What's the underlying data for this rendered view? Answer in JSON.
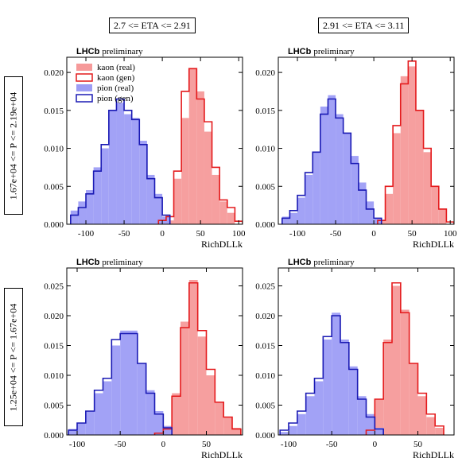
{
  "col_labels": [
    "2.7 <= ETA <= 2.91",
    "2.91 <= ETA <= 3.11"
  ],
  "row_labels": [
    "1.67e+04 <= P <= 2.19e+04",
    "1.25e+04 <= P <= 1.67e+04"
  ],
  "colors": {
    "kaon_fill": "#f69a9a",
    "kaon_line": "#e41a1c",
    "pion_fill": "#9d9df5",
    "pion_line": "#1a1ab4"
  },
  "chart_data": [
    {
      "type": "histogram",
      "brand": "LHCb",
      "brand_sub": "preliminary",
      "xlabel": "RichDLLk",
      "xlim": [
        -125,
        105
      ],
      "ylim": [
        0,
        0.022
      ],
      "xticks": [
        -100,
        -50,
        0,
        50,
        100
      ],
      "yticks": [
        0.0,
        0.005,
        0.01,
        0.015,
        0.02
      ],
      "ytick_labels": [
        "0.000",
        "0.005",
        "0.010",
        "0.015",
        "0.020"
      ],
      "legend": [
        "kaon (real)",
        "kaon (gen)",
        "pion (real)",
        "pion (gen)"
      ],
      "legend_position": "top-left",
      "series": [
        {
          "name": "kaon (real)",
          "style": "fill",
          "edges": [
            -5,
            5,
            15,
            25,
            35,
            45,
            55,
            65,
            75,
            85,
            95
          ],
          "values": [
            0.0003,
            0.0005,
            0.006,
            0.014,
            0.0205,
            0.0175,
            0.0122,
            0.0065,
            0.003,
            0.0015
          ]
        },
        {
          "name": "kaon (gen)",
          "style": "step",
          "edges": [
            -5,
            5,
            15,
            25,
            35,
            45,
            55,
            65,
            75,
            85,
            95,
            105
          ],
          "values": [
            0.0005,
            0.001,
            0.007,
            0.0175,
            0.0205,
            0.0165,
            0.0135,
            0.0075,
            0.0032,
            0.0022,
            0.0004
          ]
        },
        {
          "name": "pion (real)",
          "style": "fill",
          "edges": [
            -120,
            -110,
            -100,
            -90,
            -80,
            -70,
            -60,
            -50,
            -40,
            -30,
            -20,
            -10,
            0,
            10
          ],
          "values": [
            0.0018,
            0.003,
            0.0045,
            0.0075,
            0.01,
            0.015,
            0.016,
            0.0145,
            0.014,
            0.011,
            0.0065,
            0.004,
            0.001
          ]
        },
        {
          "name": "pion (gen)",
          "style": "step",
          "edges": [
            -120,
            -110,
            -100,
            -90,
            -80,
            -70,
            -60,
            -50,
            -40,
            -30,
            -20,
            -10,
            0,
            10
          ],
          "values": [
            0.0012,
            0.0022,
            0.004,
            0.007,
            0.0105,
            0.015,
            0.0165,
            0.015,
            0.0138,
            0.0105,
            0.006,
            0.0035,
            0.0012
          ]
        }
      ]
    },
    {
      "type": "histogram",
      "brand": "LHCb",
      "brand_sub": "preliminary",
      "xlabel": "RichDLLk",
      "xlim": [
        -125,
        105
      ],
      "ylim": [
        0,
        0.022
      ],
      "xticks": [
        -100,
        -50,
        0,
        50,
        100
      ],
      "yticks": [
        0.0,
        0.005,
        0.01,
        0.015,
        0.02
      ],
      "ytick_labels": [
        "0.000",
        "0.005",
        "0.010",
        "0.015",
        "0.020"
      ],
      "legend": [],
      "series": [
        {
          "name": "kaon (real)",
          "style": "fill",
          "edges": [
            5,
            15,
            25,
            35,
            45,
            55,
            65,
            75,
            85,
            95
          ],
          "values": [
            0.0005,
            0.004,
            0.012,
            0.0195,
            0.0208,
            0.015,
            0.0095,
            0.005,
            0.002
          ]
        },
        {
          "name": "kaon (gen)",
          "style": "step",
          "edges": [
            5,
            15,
            25,
            35,
            45,
            55,
            65,
            75,
            85,
            95,
            105
          ],
          "values": [
            0.0005,
            0.005,
            0.013,
            0.0185,
            0.0215,
            0.015,
            0.01,
            0.005,
            0.002,
            0.0003
          ]
        },
        {
          "name": "pion (real)",
          "style": "fill",
          "edges": [
            -120,
            -110,
            -100,
            -90,
            -80,
            -70,
            -60,
            -50,
            -40,
            -30,
            -20,
            -10,
            0,
            10
          ],
          "values": [
            0.001,
            0.0015,
            0.0035,
            0.0065,
            0.0095,
            0.0155,
            0.017,
            0.0145,
            0.012,
            0.009,
            0.0055,
            0.003,
            0.0008
          ]
        },
        {
          "name": "pion (gen)",
          "style": "step",
          "edges": [
            -120,
            -110,
            -100,
            -90,
            -80,
            -70,
            -60,
            -50,
            -40,
            -30,
            -20,
            -10,
            0,
            10
          ],
          "values": [
            0.0008,
            0.0018,
            0.0038,
            0.0068,
            0.0095,
            0.0145,
            0.0165,
            0.014,
            0.012,
            0.008,
            0.0045,
            0.002,
            0.0008
          ]
        }
      ]
    },
    {
      "type": "histogram",
      "brand": "LHCb",
      "brand_sub": "preliminary",
      "xlabel": "RichDLLk",
      "xlim": [
        -112,
        92
      ],
      "ylim": [
        0,
        0.028
      ],
      "xticks": [
        -100,
        -50,
        0,
        50
      ],
      "yticks": [
        0.0,
        0.005,
        0.01,
        0.015,
        0.02,
        0.025
      ],
      "ytick_labels": [
        "0.000",
        "0.005",
        "0.010",
        "0.015",
        "0.020",
        "0.025"
      ],
      "legend": [],
      "series": [
        {
          "name": "kaon (real)",
          "style": "fill",
          "edges": [
            0,
            10,
            20,
            30,
            40,
            50,
            60,
            70,
            80,
            90
          ],
          "values": [
            0.0015,
            0.007,
            0.019,
            0.026,
            0.0165,
            0.01,
            0.0055,
            0.003,
            0.0012
          ]
        },
        {
          "name": "kaon (gen)",
          "style": "step",
          "edges": [
            -10,
            0,
            10,
            20,
            30,
            40,
            50,
            60,
            70,
            80,
            90
          ],
          "values": [
            0.0003,
            0.001,
            0.0065,
            0.018,
            0.0255,
            0.0175,
            0.011,
            0.0055,
            0.003,
            0.001
          ]
        },
        {
          "name": "pion (real)",
          "style": "fill",
          "edges": [
            -110,
            -100,
            -90,
            -80,
            -70,
            -60,
            -50,
            -40,
            -30,
            -20,
            -10,
            0,
            10
          ],
          "values": [
            0.001,
            0.002,
            0.004,
            0.007,
            0.009,
            0.015,
            0.0175,
            0.0175,
            0.012,
            0.0075,
            0.004,
            0.0015
          ]
        },
        {
          "name": "pion (gen)",
          "style": "step",
          "edges": [
            -110,
            -100,
            -90,
            -80,
            -70,
            -60,
            -50,
            -40,
            -30,
            -20,
            -10,
            0,
            10
          ],
          "values": [
            0.0008,
            0.002,
            0.004,
            0.0075,
            0.0095,
            0.016,
            0.017,
            0.017,
            0.012,
            0.007,
            0.0035,
            0.0012
          ]
        }
      ]
    },
    {
      "type": "histogram",
      "brand": "LHCb",
      "brand_sub": "preliminary",
      "xlabel": "RichDLLk",
      "xlim": [
        -112,
        92
      ],
      "ylim": [
        0,
        0.028
      ],
      "xticks": [
        -100,
        -50,
        0,
        50
      ],
      "yticks": [
        0.0,
        0.005,
        0.01,
        0.015,
        0.02,
        0.025
      ],
      "ytick_labels": [
        "0.000",
        "0.005",
        "0.010",
        "0.015",
        "0.020",
        "0.025"
      ],
      "legend": [],
      "series": [
        {
          "name": "kaon (real)",
          "style": "fill",
          "edges": [
            -10,
            0,
            10,
            20,
            30,
            40,
            50,
            60,
            70,
            80
          ],
          "values": [
            0.0005,
            0.006,
            0.016,
            0.025,
            0.021,
            0.012,
            0.0065,
            0.003,
            0.0012
          ]
        },
        {
          "name": "kaon (gen)",
          "style": "step",
          "edges": [
            -10,
            0,
            10,
            20,
            30,
            40,
            50,
            60,
            70,
            80
          ],
          "values": [
            0.0008,
            0.006,
            0.0155,
            0.0255,
            0.0205,
            0.012,
            0.007,
            0.0035,
            0.0015
          ]
        },
        {
          "name": "pion (real)",
          "style": "fill",
          "edges": [
            -110,
            -100,
            -90,
            -80,
            -70,
            -60,
            -50,
            -40,
            -30,
            -20,
            -10,
            0,
            10
          ],
          "values": [
            0.0005,
            0.0015,
            0.0035,
            0.0065,
            0.009,
            0.016,
            0.0205,
            0.016,
            0.0115,
            0.0065,
            0.0035,
            0.0012
          ]
        },
        {
          "name": "pion (gen)",
          "style": "step",
          "edges": [
            -110,
            -100,
            -90,
            -80,
            -70,
            -60,
            -50,
            -40,
            -30,
            -20,
            -10,
            0,
            10
          ],
          "values": [
            0.0008,
            0.002,
            0.004,
            0.007,
            0.0095,
            0.0165,
            0.02,
            0.0155,
            0.011,
            0.006,
            0.003,
            0.001
          ]
        }
      ]
    }
  ]
}
